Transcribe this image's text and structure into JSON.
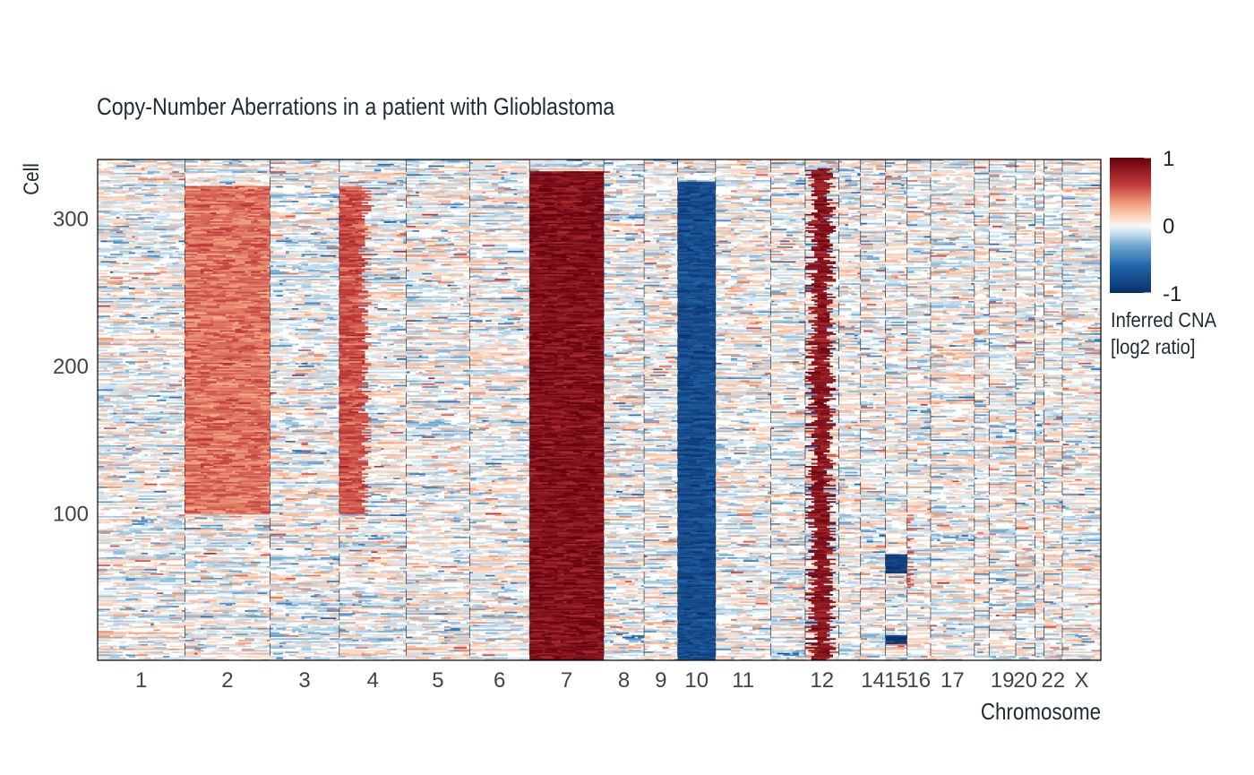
{
  "chart_data": {
    "type": "heatmap",
    "title": "Copy-Number Aberrations in a patient with Glioblastoma",
    "xlabel": "Chromosome",
    "ylabel": "Cell",
    "y_ticks": [
      100,
      200,
      300
    ],
    "ylim": [
      1,
      340
    ],
    "chromosomes": [
      {
        "label": "1",
        "size": 249
      },
      {
        "label": "2",
        "size": 243
      },
      {
        "label": "3",
        "size": 198
      },
      {
        "label": "4",
        "size": 191
      },
      {
        "label": "5",
        "size": 181
      },
      {
        "label": "6",
        "size": 171
      },
      {
        "label": "7",
        "size": 212
      },
      {
        "label": "8",
        "size": 115
      },
      {
        "label": "9",
        "size": 96
      },
      {
        "label": "10",
        "size": 108
      },
      {
        "label": "11",
        "size": 158
      },
      {
        "label": "",
        "size": 98
      },
      {
        "label": "12",
        "size": 96
      },
      {
        "label": "",
        "size": 62
      },
      {
        "label": "14",
        "size": 71
      },
      {
        "label": "15",
        "size": 62
      },
      {
        "label": "16",
        "size": 67
      },
      {
        "label": "17",
        "size": 125
      },
      {
        "label": "",
        "size": 42
      },
      {
        "label": "19",
        "size": 76
      },
      {
        "label": "20",
        "size": 55
      },
      {
        "label": "",
        "size": 26
      },
      {
        "label": "22",
        "size": 52
      },
      {
        "label": "X",
        "size": 110
      }
    ],
    "color_scale": {
      "min": -1,
      "max": 1,
      "low_color": "#08306b",
      "mid_color": "#f7f7f7",
      "high_color": "#67000d",
      "ticks": [
        "1",
        "0",
        "-1"
      ]
    },
    "legend_title": [
      "Inferred CNA",
      "[log2 ratio]"
    ],
    "aberrations": [
      {
        "chromosome": "2",
        "from": 0.0,
        "to": 1.0,
        "value": 0.45,
        "cells": [
          100,
          322
        ]
      },
      {
        "chromosome": "4",
        "from": 0.0,
        "to": 0.4,
        "value": 0.55,
        "cells": [
          100,
          322
        ]
      },
      {
        "chromosome": "7",
        "from": 0.0,
        "to": 1.0,
        "value": 0.9,
        "cells": [
          1,
          332
        ]
      },
      {
        "chromosome": "10",
        "from": 0.0,
        "to": 1.0,
        "value": -0.8,
        "cells": [
          1,
          325
        ]
      },
      {
        "chromosome": "12",
        "from": 0.2,
        "to": 0.75,
        "value": 0.85,
        "cells": [
          1,
          334
        ]
      },
      {
        "chromosome": "15",
        "from": 0.0,
        "to": 1.0,
        "value": -0.9,
        "cells": [
          60,
          72
        ]
      },
      {
        "chromosome": "15",
        "from": 0.0,
        "to": 1.0,
        "value": -0.9,
        "cells": [
          12,
          17
        ]
      },
      {
        "chromosome": "16",
        "from": 0.0,
        "to": 0.15,
        "value": 0.5,
        "cells": [
          50,
          100
        ]
      }
    ]
  }
}
